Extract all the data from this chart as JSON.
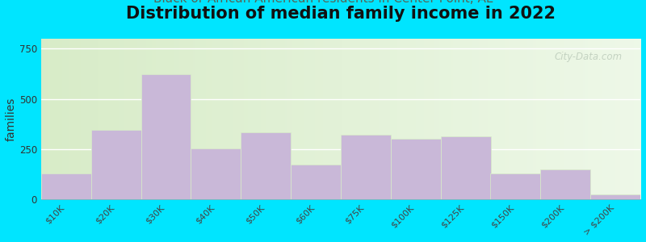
{
  "title": "Distribution of median family income in 2022",
  "ylabel": "families",
  "categories": [
    "$10K",
    "$20K",
    "$30K",
    "$40K",
    "$50K",
    "$60K",
    "$75K",
    "$100K",
    "$125K",
    "$150K",
    "$200K",
    "> $200K"
  ],
  "values": [
    130,
    345,
    625,
    255,
    335,
    175,
    320,
    300,
    315,
    130,
    150,
    25
  ],
  "bar_color": "#c9b8d8",
  "bar_edge_color": "#b8a8cc",
  "background_outer": "#00e5ff",
  "yticks": [
    0,
    250,
    500,
    750
  ],
  "ylim": [
    0,
    800
  ],
  "title_fontsize": 15,
  "subtitle_fontsize": 11,
  "ylabel_fontsize": 10,
  "watermark": "City-Data.com",
  "bg_left_color": "#d8ecc8",
  "bg_right_color": "#eef8e8"
}
